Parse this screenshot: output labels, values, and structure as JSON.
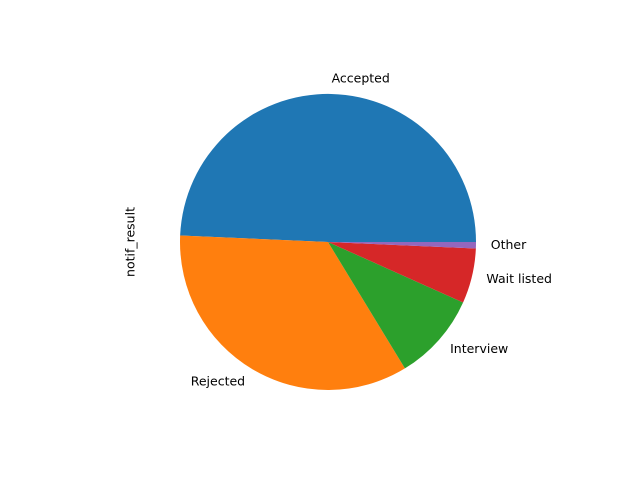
{
  "chart_data": {
    "type": "pie",
    "ylabel": "notif_result",
    "start_angle_deg": 0,
    "direction": "counterclockwise",
    "slices": [
      {
        "label": "Accepted",
        "value": 49.3,
        "color": "#1f77b4"
      },
      {
        "label": "Rejected",
        "value": 34.4,
        "color": "#ff7f0e"
      },
      {
        "label": "Interview",
        "value": 9.6,
        "color": "#2ca02c"
      },
      {
        "label": "Wait listed",
        "value": 6.0,
        "color": "#d62728"
      },
      {
        "label": "Other",
        "value": 0.7,
        "color": "#9467bd"
      }
    ]
  }
}
